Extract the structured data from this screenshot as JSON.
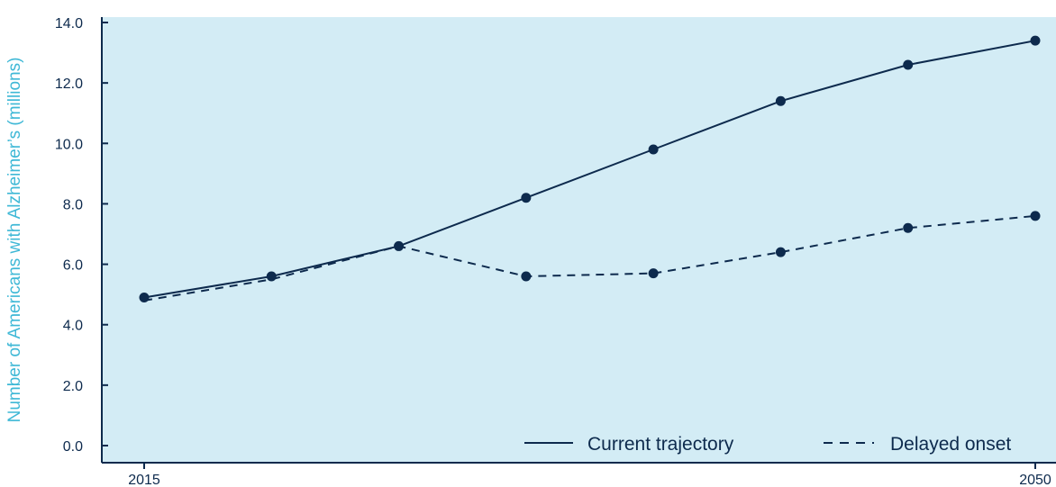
{
  "colors": {
    "plot_background": "#d3ecf5",
    "line": "#0d2a4d",
    "axis": "#0d2a4d",
    "ylabel": "#3fb8d6"
  },
  "chart_data": {
    "type": "line",
    "title": "",
    "xlabel": "",
    "ylabel": "Number of Americans with Alzheimer’s (millions)",
    "x": [
      2015,
      2020,
      2025,
      2030,
      2035,
      2040,
      2045,
      2050
    ],
    "x_tick_labels": [
      "2015",
      "2050"
    ],
    "y_tick_labels": [
      "0.0",
      "2.0",
      "4.0",
      "6.0",
      "8.0",
      "10.0",
      "12.0",
      "14.0"
    ],
    "ylim": [
      0,
      14
    ],
    "grid": false,
    "legend_position": "bottom-right",
    "series": [
      {
        "name": "Current trajectory",
        "style": "solid",
        "markers": [
          true,
          true,
          true,
          true,
          true,
          true,
          true,
          true
        ],
        "values": [
          4.9,
          5.6,
          6.6,
          8.2,
          9.8,
          11.4,
          12.6,
          13.4
        ]
      },
      {
        "name": "Delayed onset",
        "style": "dashed",
        "markers": [
          false,
          false,
          false,
          true,
          true,
          true,
          true,
          true
        ],
        "values": [
          4.8,
          5.5,
          6.6,
          5.6,
          5.7,
          6.4,
          7.2,
          7.6
        ]
      }
    ]
  }
}
